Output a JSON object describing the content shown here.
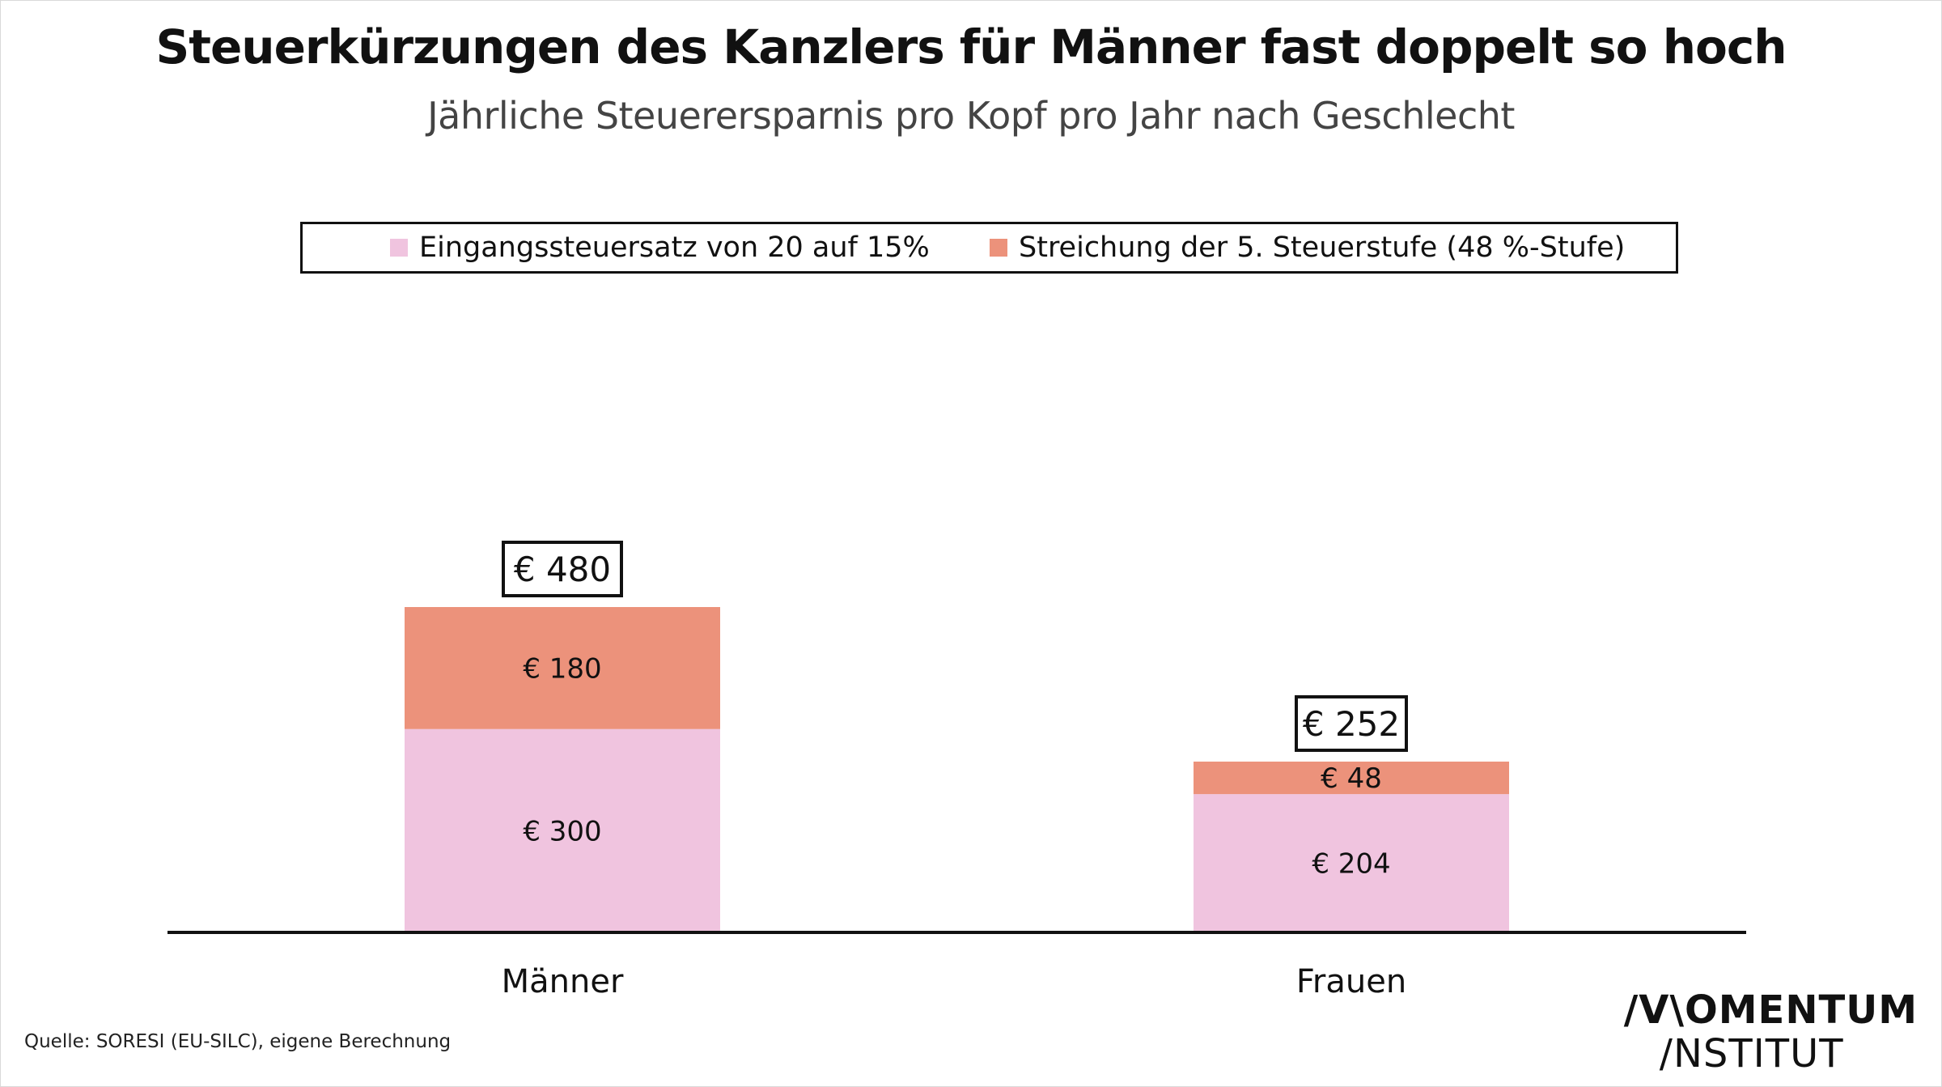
{
  "title": "Steuerkürzungen des Kanzlers für Männer fast doppelt so hoch",
  "subtitle": "Jährliche Steuerersparnis pro Kopf pro Jahr nach Geschlecht",
  "source": "Quelle: SORESI (EU-SILC), eigene Berechnung",
  "logo": {
    "line1": "/V\\OMENTUM",
    "line2": "/NSTITUT"
  },
  "chart_data": {
    "type": "bar",
    "stacked": true,
    "categories": [
      "Männer",
      "Frauen"
    ],
    "series": [
      {
        "name": "Eingangssteuersatz von 20 auf 15%",
        "values": [
          300,
          204
        ],
        "color": "#f0c4df",
        "labels": [
          "€ 300",
          "€ 204"
        ]
      },
      {
        "name": "Streichung der 5. Steuerstufe (48 %-Stufe)",
        "values": [
          180,
          48
        ],
        "color": "#ec927b",
        "labels": [
          "€ 180",
          "€ 48"
        ]
      }
    ],
    "totals": [
      480,
      252
    ],
    "total_labels": [
      "€ 480",
      "€ 252"
    ],
    "ylim": [
      0,
      520
    ],
    "legend": "top",
    "grid": false
  }
}
